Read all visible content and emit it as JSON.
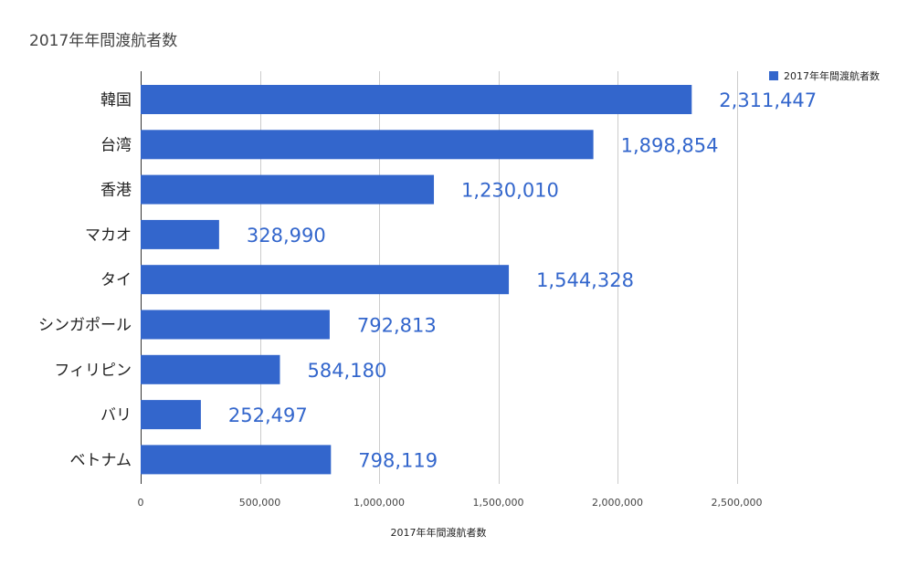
{
  "chart_data": {
    "type": "bar",
    "orientation": "horizontal",
    "title": "2017年年間渡航者数",
    "xlabel": "2017年年間渡航者数",
    "ylabel": "",
    "categories": [
      "韓国",
      "台湾",
      "香港",
      "マカオ",
      "タイ",
      "シンガポール",
      "フィリピン",
      "バリ",
      "ベトナム"
    ],
    "series": [
      {
        "name": "2017年年間渡航者数",
        "values": [
          2311447,
          1898854,
          1230010,
          328990,
          1544328,
          792813,
          584180,
          252497,
          798119
        ],
        "data_labels": [
          "2,311,447",
          "1,898,854",
          "1,230,010",
          "328,990",
          "1,544,328",
          "792,813",
          "584,180",
          "252,497",
          "798,119"
        ],
        "color": "#3366cc"
      }
    ],
    "xlim": [
      0,
      3000000
    ],
    "x_ticks": [
      0,
      500000,
      1000000,
      1500000,
      2000000,
      2500000
    ],
    "x_tick_labels": [
      "0",
      "500,000",
      "1,000,000",
      "1,500,000",
      "2,000,000",
      "2,500,000"
    ],
    "grid": true,
    "legend": {
      "position": "top-right",
      "entries": [
        "2017年年間渡航者数"
      ]
    }
  }
}
